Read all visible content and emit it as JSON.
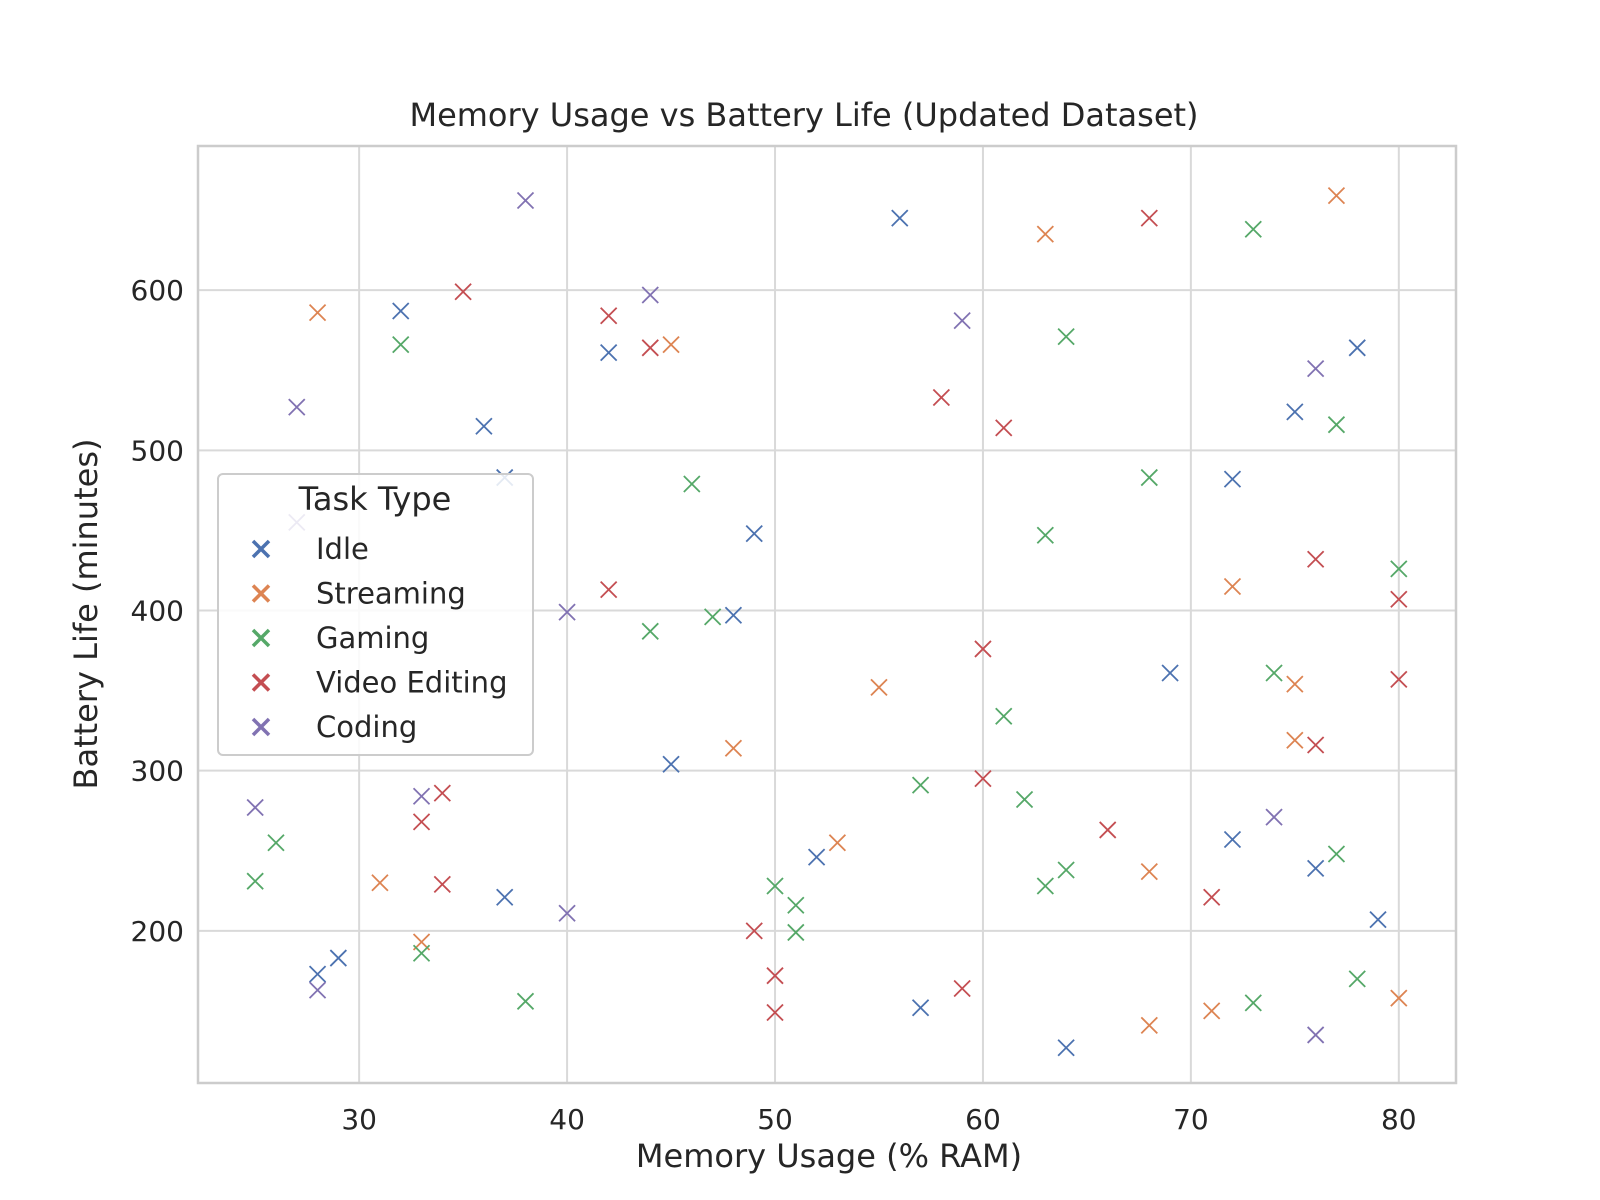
{
  "chart_data": {
    "type": "scatter",
    "title": "Memory Usage vs Battery Life (Updated Dataset)",
    "xlabel": "Memory Usage (% RAM)",
    "ylabel": "Battery Life (minutes)",
    "xlim": [
      22.25,
      82.75
    ],
    "ylim": [
      105,
      690
    ],
    "xticks": [
      30,
      40,
      50,
      60,
      70,
      80
    ],
    "yticks": [
      200,
      300,
      400,
      500,
      600
    ],
    "grid": true,
    "marker": "x",
    "legend": {
      "title": "Task Type",
      "placement": "center-left"
    },
    "series": [
      {
        "name": "Idle",
        "color": "#4c72b0",
        "points": [
          [
            32,
            587
          ],
          [
            42,
            561
          ],
          [
            36,
            515
          ],
          [
            37,
            483
          ],
          [
            49,
            448
          ],
          [
            48,
            397
          ],
          [
            45,
            304
          ],
          [
            37,
            221
          ],
          [
            29,
            183
          ],
          [
            28,
            173
          ],
          [
            52,
            246
          ],
          [
            56,
            645
          ],
          [
            57,
            152
          ],
          [
            64,
            127
          ],
          [
            69,
            361
          ],
          [
            72,
            482
          ],
          [
            72,
            257
          ],
          [
            75,
            524
          ],
          [
            76,
            239
          ],
          [
            78,
            564
          ],
          [
            79,
            207
          ]
        ]
      },
      {
        "name": "Streaming",
        "color": "#dd8452",
        "points": [
          [
            28,
            586
          ],
          [
            45,
            566
          ],
          [
            31,
            230
          ],
          [
            33,
            193
          ],
          [
            48,
            314
          ],
          [
            53,
            255
          ],
          [
            55,
            352
          ],
          [
            63,
            635
          ],
          [
            68,
            237
          ],
          [
            68,
            141
          ],
          [
            71,
            150
          ],
          [
            72,
            415
          ],
          [
            75,
            354
          ],
          [
            75,
            319
          ],
          [
            77,
            659
          ],
          [
            80,
            158
          ]
        ]
      },
      {
        "name": "Gaming",
        "color": "#55a868",
        "points": [
          [
            32,
            566
          ],
          [
            46,
            479
          ],
          [
            44,
            387
          ],
          [
            47,
            396
          ],
          [
            26,
            255
          ],
          [
            25,
            231
          ],
          [
            33,
            186
          ],
          [
            38,
            156
          ],
          [
            50,
            228
          ],
          [
            51,
            216
          ],
          [
            51,
            199
          ],
          [
            57,
            291
          ],
          [
            61,
            334
          ],
          [
            62,
            282
          ],
          [
            63,
            447
          ],
          [
            63,
            228
          ],
          [
            64,
            571
          ],
          [
            64,
            238
          ],
          [
            68,
            483
          ],
          [
            73,
            638
          ],
          [
            73,
            155
          ],
          [
            74,
            361
          ],
          [
            77,
            516
          ],
          [
            77,
            248
          ],
          [
            78,
            170
          ],
          [
            80,
            426
          ]
        ]
      },
      {
        "name": "Video Editing",
        "color": "#c44e52",
        "points": [
          [
            35,
            599
          ],
          [
            42,
            584
          ],
          [
            44,
            564
          ],
          [
            42,
            413
          ],
          [
            34,
            286
          ],
          [
            33,
            268
          ],
          [
            34,
            229
          ],
          [
            49,
            200
          ],
          [
            50,
            172
          ],
          [
            50,
            149
          ],
          [
            58,
            533
          ],
          [
            61,
            514
          ],
          [
            60,
            376
          ],
          [
            60,
            295
          ],
          [
            59,
            164
          ],
          [
            66,
            263
          ],
          [
            68,
            645
          ],
          [
            71,
            221
          ],
          [
            76,
            432
          ],
          [
            76,
            316
          ],
          [
            80,
            407
          ],
          [
            80,
            357
          ]
        ]
      },
      {
        "name": "Coding",
        "color": "#8172b2",
        "points": [
          [
            38,
            656
          ],
          [
            44,
            597
          ],
          [
            27,
            527
          ],
          [
            27,
            455
          ],
          [
            40,
            399
          ],
          [
            25,
            277
          ],
          [
            33,
            284
          ],
          [
            40,
            211
          ],
          [
            28,
            163
          ],
          [
            59,
            581
          ],
          [
            74,
            271
          ],
          [
            76,
            551
          ],
          [
            76,
            135
          ]
        ]
      }
    ]
  }
}
